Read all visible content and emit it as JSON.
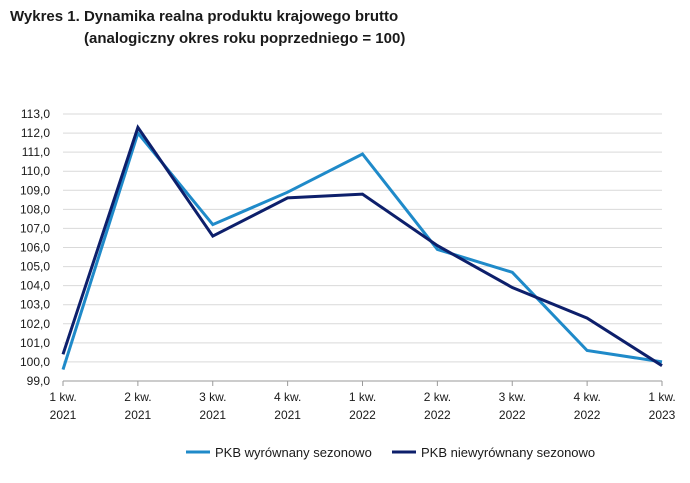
{
  "title_line1": "Wykres 1. Dynamika realna produktu krajowego brutto",
  "title_line2": "(analogiczny okres roku poprzedniego = 100)",
  "chart_data": {
    "type": "line",
    "title": "Wykres 1. Dynamika realna produktu krajowego brutto (analogiczny okres roku poprzedniego = 100)",
    "categories": [
      [
        "1 kw.",
        "2021"
      ],
      [
        "2 kw.",
        "2021"
      ],
      [
        "3 kw.",
        "2021"
      ],
      [
        "4 kw.",
        "2021"
      ],
      [
        "1 kw.",
        "2022"
      ],
      [
        "2 kw.",
        "2022"
      ],
      [
        "3 kw.",
        "2022"
      ],
      [
        "4 kw.",
        "2022"
      ],
      [
        "1 kw.",
        "2023"
      ]
    ],
    "series": [
      {
        "name": "PKB wyrównany sezonowo",
        "color": "#1f8ac9",
        "values": [
          99.6,
          112.0,
          107.2,
          108.9,
          110.9,
          105.9,
          104.7,
          100.6,
          100.0
        ]
      },
      {
        "name": "PKB niewyrównany sezonowo",
        "color": "#0d1f6b",
        "values": [
          100.4,
          112.3,
          106.6,
          108.6,
          108.8,
          106.1,
          103.9,
          102.3,
          99.8
        ]
      }
    ],
    "ylim": [
      99.0,
      113.0
    ],
    "yticks": [
      "99,0",
      "100,0",
      "101,0",
      "102,0",
      "103,0",
      "104,0",
      "105,0",
      "106,0",
      "107,0",
      "108,0",
      "109,0",
      "110,0",
      "111,0",
      "112,0",
      "113,0"
    ],
    "grid": true,
    "legend": "bottom"
  }
}
